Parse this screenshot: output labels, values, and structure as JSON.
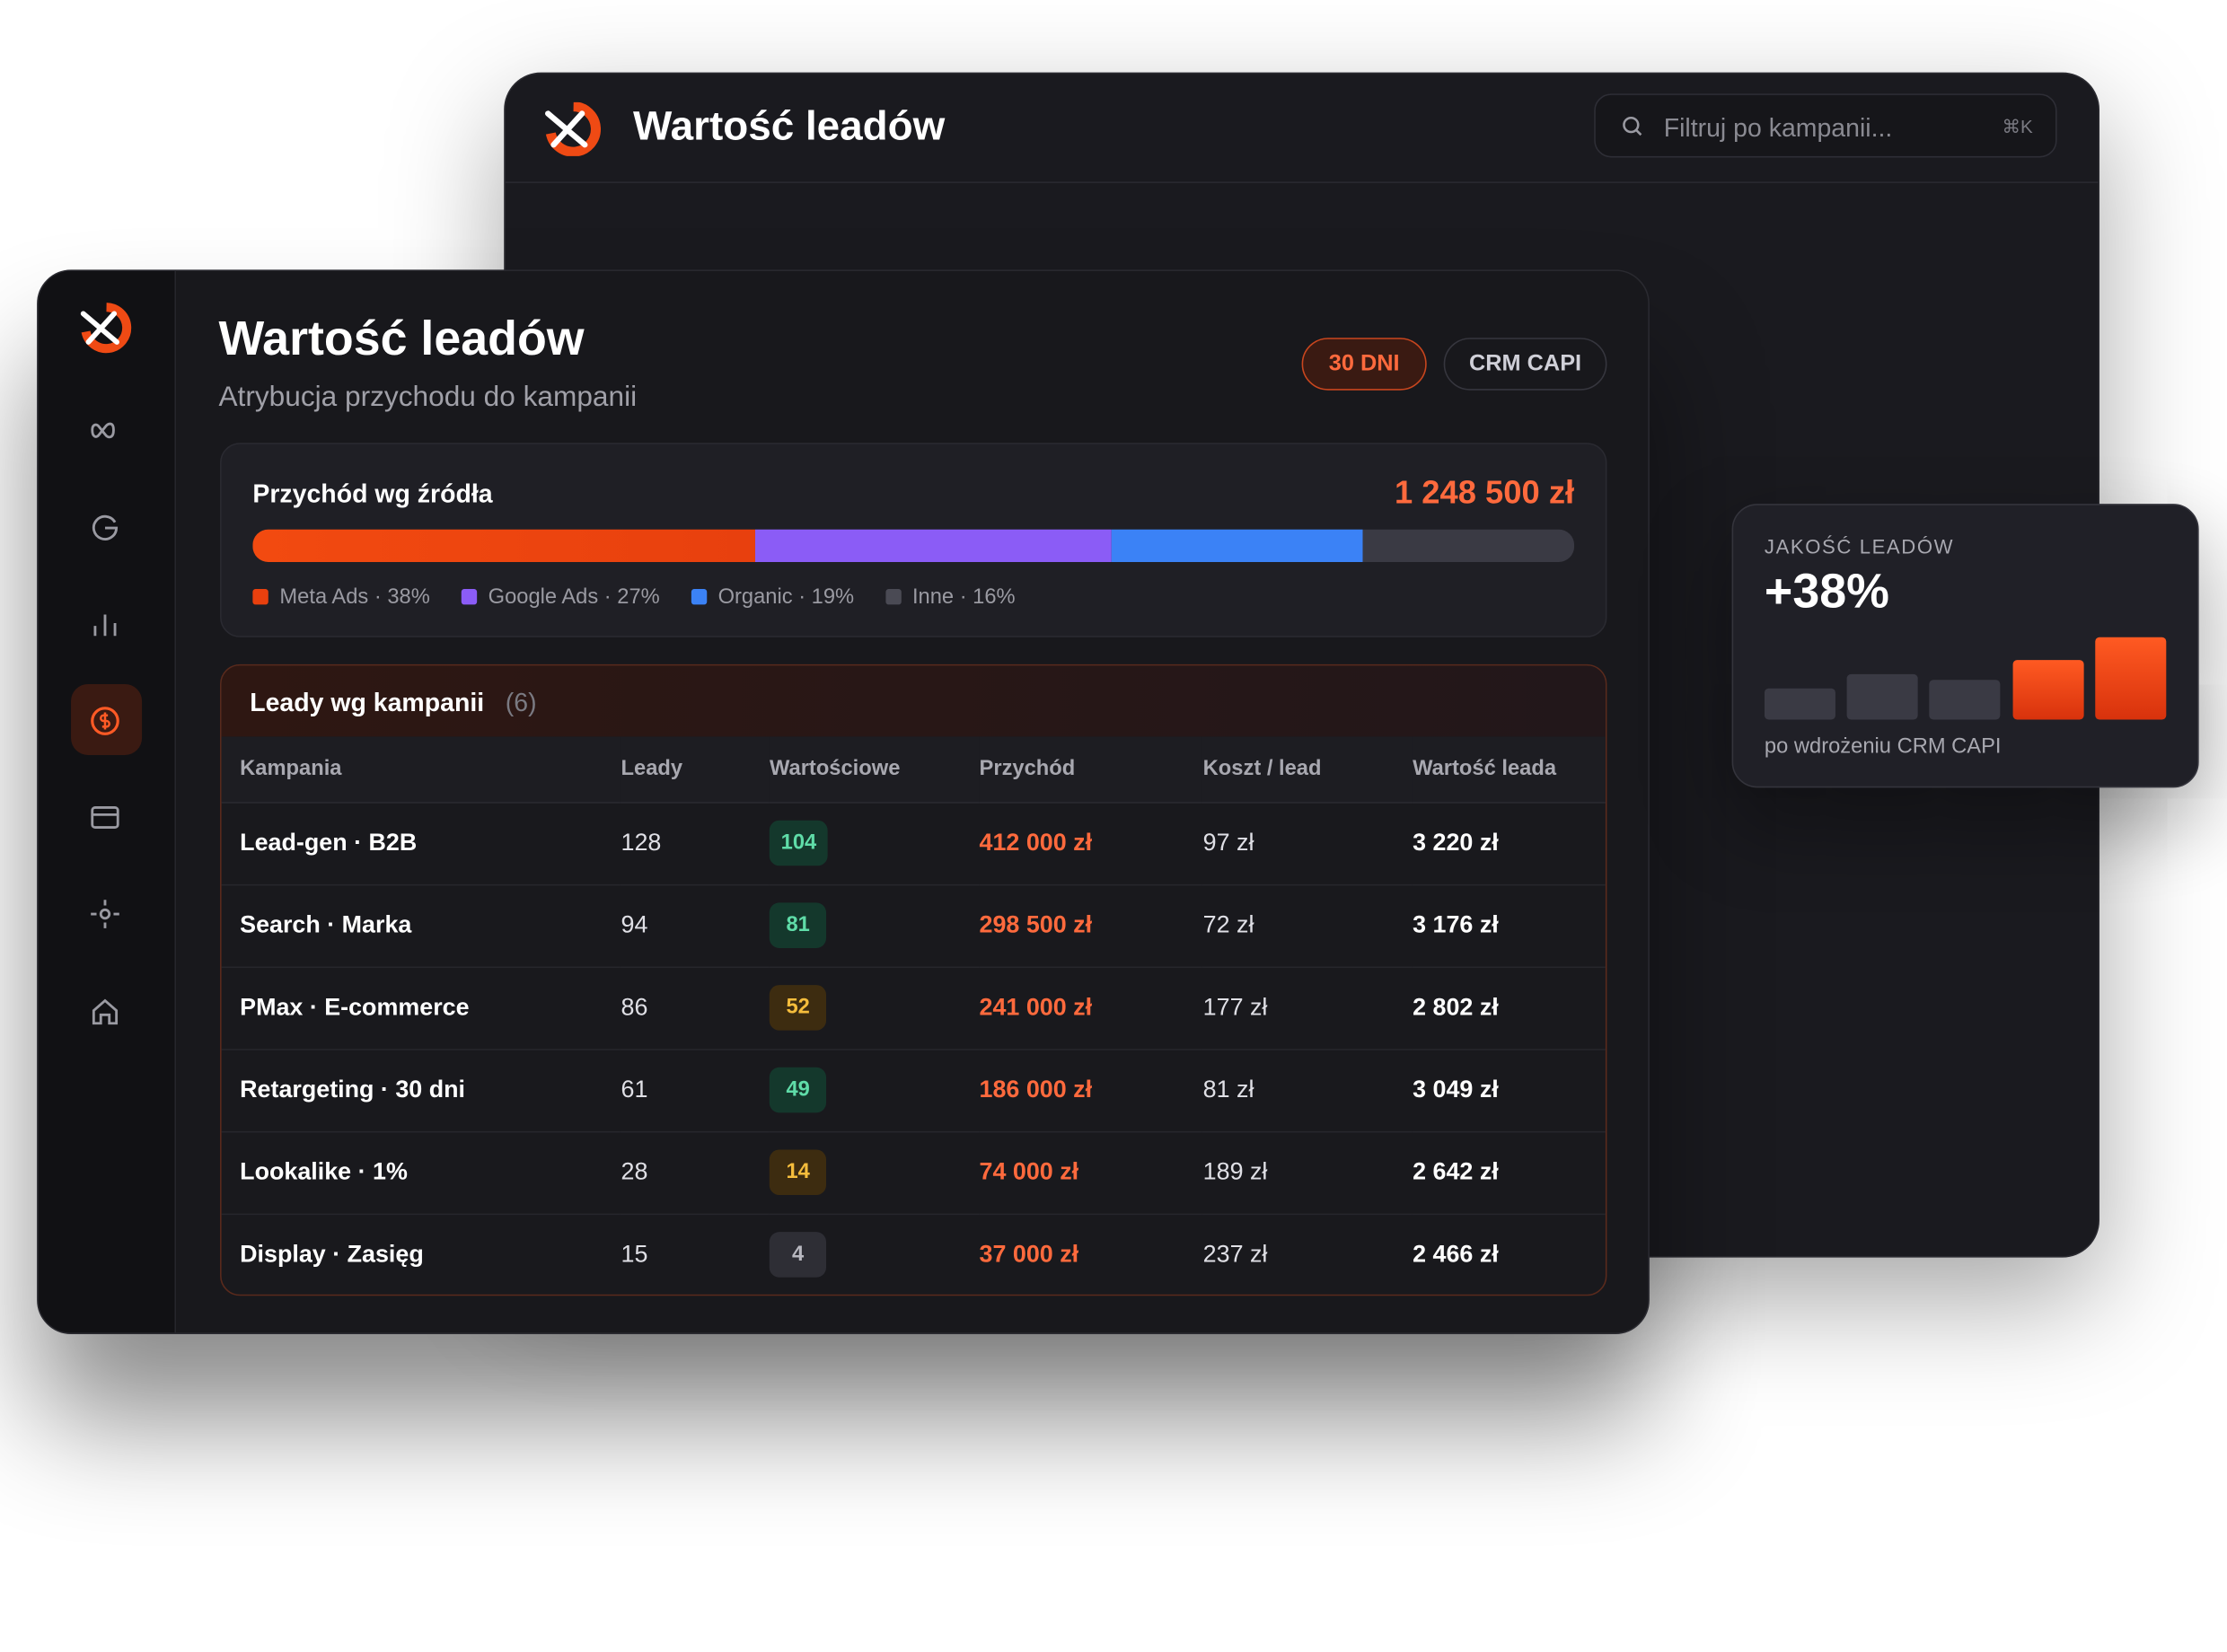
{
  "back_window": {
    "title": "Wartość leadów",
    "search_placeholder": "Filtruj po kampanii...",
    "search_shortcut": "⌘K"
  },
  "header": {
    "title": "Wartość leadów",
    "subtitle": "Atrybucja przychodu do kampanii",
    "filters": [
      "30 DNI",
      "CRM CAPI"
    ]
  },
  "revenue": {
    "title": "Przychód wg źródła",
    "total": "1 248 500 zł",
    "sources": [
      {
        "label": "Meta Ads · 38%",
        "share": 38,
        "color": "#e8400e"
      },
      {
        "label": "Google Ads · 27%",
        "share": 27,
        "color": "#8b5cf6"
      },
      {
        "label": "Organic · 19%",
        "share": 19,
        "color": "#3b82f6"
      },
      {
        "label": "Inne · 16%",
        "share": 16,
        "color": "#3a3a44"
      }
    ]
  },
  "table": {
    "title": "Leady wg kampanii",
    "count": "(6)",
    "columns": [
      "Kampania",
      "Leady",
      "Wartościowe",
      "Przychód",
      "Koszt / lead",
      "Wartość leada"
    ],
    "rows": [
      [
        "Lead-gen · B2B",
        "128",
        "104",
        "412 000 zł",
        "97 zł",
        "3 220 zł"
      ],
      [
        "Search · Marka",
        "94",
        "81",
        "298 500 zł",
        "72 zł",
        "3 176 zł"
      ],
      [
        "PMax · E-commerce",
        "86",
        "52",
        "241 000 zł",
        "177 zł",
        "2 802 zł"
      ],
      [
        "Retargeting · 30 dni",
        "61",
        "49",
        "186 000 zł",
        "81 zł",
        "3 049 zł"
      ],
      [
        "Lookalike · 1%",
        "28",
        "14",
        "74 000 zł",
        "189 zł",
        "2 642 zł"
      ],
      [
        "Display · Zasięg",
        "15",
        "4",
        "37 000 zł",
        "237 zł",
        "2 466 zł"
      ]
    ]
  },
  "quality": {
    "label": "JAKOŚĆ LEADÓW",
    "value": "+38%",
    "caption": "po wdrożeniu CRM CAPI"
  }
}
